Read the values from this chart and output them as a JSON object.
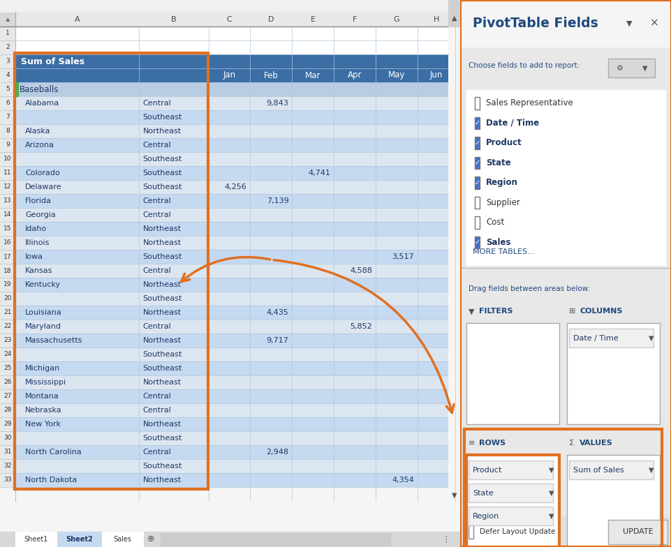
{
  "fig_width": 9.62,
  "fig_height": 7.84,
  "excel_header_bg": "#3a6ea5",
  "excel_row_light": "#dce6f1",
  "excel_row_alt": "#c5d9f1",
  "excel_baseballs_bg": "#b8cce4",
  "panel_bg": "#e8e8e8",
  "panel_title_color": "#1f497d",
  "panel_title_text": "PivotTable Fields",
  "panel_subtitle": "Choose fields to add to report:",
  "fields": [
    {
      "label": "Sales Representative",
      "checked": false,
      "bold": false
    },
    {
      "label": "Date / Time",
      "checked": true,
      "bold": true
    },
    {
      "label": "Product",
      "checked": true,
      "bold": true
    },
    {
      "label": "State",
      "checked": true,
      "bold": true
    },
    {
      "label": "Region",
      "checked": true,
      "bold": true
    },
    {
      "label": "Supplier",
      "checked": false,
      "bold": false
    },
    {
      "label": "Cost",
      "checked": false,
      "bold": false
    },
    {
      "label": "Sales",
      "checked": true,
      "bold": true
    }
  ],
  "more_tables": "MORE TABLES...",
  "drag_text": "Drag fields between areas below:",
  "areas_filters": "FILTERS",
  "areas_columns": "COLUMNS",
  "areas_rows": "ROWS",
  "areas_values": "VALUES",
  "columns_field": "Date / Time",
  "rows_fields": [
    "Product",
    "State",
    "Region"
  ],
  "values_field": "Sum of Sales",
  "col_letters": [
    "A",
    "B",
    "C",
    "D",
    "E",
    "F",
    "G",
    "H"
  ],
  "col_months": [
    "Jan",
    "Feb",
    "Mar",
    "Apr",
    "May",
    "Jun"
  ],
  "pivot_header": "Sum of Sales",
  "pivot_rows": [
    {
      "rn": 3,
      "col_a": "Sum of Sales",
      "col_b": "",
      "value": "",
      "vcol": -1,
      "is_header": true
    },
    {
      "rn": 4,
      "col_a": "",
      "col_b": "",
      "value": "",
      "vcol": -1,
      "is_month_hdr": true
    },
    {
      "rn": 5,
      "col_a": "Baseballs",
      "col_b": "",
      "value": "",
      "vcol": -1,
      "is_product": true
    },
    {
      "rn": 6,
      "col_a": "Alabama",
      "col_b": "Central",
      "value": "9,843",
      "vcol": 1,
      "is_header": false
    },
    {
      "rn": 7,
      "col_a": "",
      "col_b": "Southeast",
      "value": "",
      "vcol": -1,
      "is_header": false
    },
    {
      "rn": 8,
      "col_a": "Alaska",
      "col_b": "Northeast",
      "value": "",
      "vcol": -1,
      "is_header": false
    },
    {
      "rn": 9,
      "col_a": "Arizona",
      "col_b": "Central",
      "value": "",
      "vcol": -1,
      "is_header": false
    },
    {
      "rn": 10,
      "col_a": "",
      "col_b": "Southeast",
      "value": "",
      "vcol": -1,
      "is_header": false
    },
    {
      "rn": 11,
      "col_a": "Colorado",
      "col_b": "Southeast",
      "value": "4,741",
      "vcol": 2,
      "is_header": false
    },
    {
      "rn": 12,
      "col_a": "Delaware",
      "col_b": "Southeast",
      "value": "4,256",
      "vcol": 0,
      "is_header": false
    },
    {
      "rn": 13,
      "col_a": "Florida",
      "col_b": "Central",
      "value": "7,139",
      "vcol": 1,
      "is_header": false
    },
    {
      "rn": 14,
      "col_a": "Georgia",
      "col_b": "Central",
      "value": "",
      "vcol": -1,
      "is_header": false
    },
    {
      "rn": 15,
      "col_a": "Idaho",
      "col_b": "Northeast",
      "value": "",
      "vcol": -1,
      "is_header": false
    },
    {
      "rn": 16,
      "col_a": "Illinois",
      "col_b": "Northeast",
      "value": "",
      "vcol": -1,
      "is_header": false
    },
    {
      "rn": 17,
      "col_a": "Iowa",
      "col_b": "Southeast",
      "value": "3,517",
      "vcol": 4,
      "is_header": false
    },
    {
      "rn": 18,
      "col_a": "Kansas",
      "col_b": "Central",
      "value": "4,588",
      "vcol": 3,
      "is_header": false
    },
    {
      "rn": 19,
      "col_a": "Kentucky",
      "col_b": "Northeast",
      "value": "",
      "vcol": -1,
      "is_header": false
    },
    {
      "rn": 20,
      "col_a": "",
      "col_b": "Southeast",
      "value": "",
      "vcol": -1,
      "is_header": false
    },
    {
      "rn": 21,
      "col_a": "Louisiana",
      "col_b": "Northeast",
      "value": "4,435",
      "vcol": 1,
      "is_header": false
    },
    {
      "rn": 22,
      "col_a": "Maryland",
      "col_b": "Central",
      "value": "5,852",
      "vcol": 3,
      "is_header": false
    },
    {
      "rn": 23,
      "col_a": "Massachusetts",
      "col_b": "Northeast",
      "value": "9,717",
      "vcol": 1,
      "is_header": false
    },
    {
      "rn": 24,
      "col_a": "",
      "col_b": "Southeast",
      "value": "",
      "vcol": -1,
      "is_header": false
    },
    {
      "rn": 25,
      "col_a": "Michigan",
      "col_b": "Southeast",
      "value": "",
      "vcol": -1,
      "is_header": false
    },
    {
      "rn": 26,
      "col_a": "Mississippi",
      "col_b": "Northeast",
      "value": "",
      "vcol": -1,
      "is_header": false
    },
    {
      "rn": 27,
      "col_a": "Montana",
      "col_b": "Central",
      "value": "",
      "vcol": -1,
      "is_header": false
    },
    {
      "rn": 28,
      "col_a": "Nebraska",
      "col_b": "Central",
      "value": "",
      "vcol": -1,
      "is_header": false
    },
    {
      "rn": 29,
      "col_a": "New York",
      "col_b": "Northeast",
      "value": "",
      "vcol": -1,
      "is_header": false
    },
    {
      "rn": 30,
      "col_a": "",
      "col_b": "Southeast",
      "value": "",
      "vcol": -1,
      "is_header": false
    },
    {
      "rn": 31,
      "col_a": "North Carolina",
      "col_b": "Central",
      "value": "2,948",
      "vcol": 1,
      "is_header": false
    },
    {
      "rn": 32,
      "col_a": "",
      "col_b": "Southeast",
      "value": "",
      "vcol": -1,
      "is_header": false
    },
    {
      "rn": 33,
      "col_a": "North Dakota",
      "col_b": "Northeast",
      "value": "4,354",
      "vcol": 4,
      "is_header": false
    }
  ],
  "orange": "#e07020",
  "defer_text": "Defer Layout Update",
  "update_text": "UPDATE"
}
